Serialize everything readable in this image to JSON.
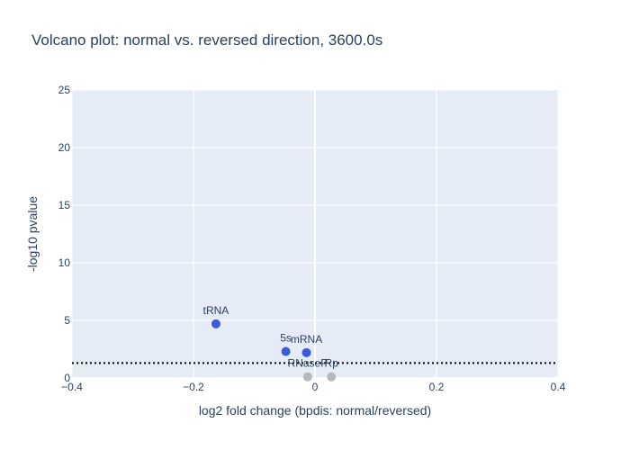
{
  "chart_data": {
    "type": "scatter",
    "title": "Volcano plot: normal vs. reversed direction, 3600.0s",
    "xlabel": "log2 fold change (bpdis: normal/reversed)",
    "ylabel": "-log10 pvalue",
    "xlim": [
      -0.4,
      0.4
    ],
    "ylim": [
      0,
      25
    ],
    "x_ticks": [
      -0.4,
      -0.2,
      0,
      0.2,
      0.4
    ],
    "x_tick_labels": [
      "−0.4",
      "−0.2",
      "0",
      "0.2",
      "0.4"
    ],
    "y_ticks": [
      0,
      5,
      10,
      15,
      20,
      25
    ],
    "y_tick_labels": [
      "0",
      "5",
      "10",
      "15",
      "20",
      "25"
    ],
    "threshold_y": 1.3,
    "grid": true,
    "colors": {
      "background": "#e5ecf6",
      "grid": "#ffffff",
      "significant": "#3b5bdb",
      "nonsignificant": "#b4b8bf",
      "threshold": "#000000",
      "text": "#2a3f5f"
    },
    "points": [
      {
        "label": "tRNA",
        "x": -0.163,
        "y": 4.7,
        "significant": true
      },
      {
        "label": "5s",
        "x": -0.048,
        "y": 2.3,
        "significant": true
      },
      {
        "label": "mRNA",
        "x": -0.014,
        "y": 2.2,
        "significant": true
      },
      {
        "label": "RNaseP",
        "x": -0.012,
        "y": 0.1,
        "significant": false
      },
      {
        "label": "Rp",
        "x": 0.027,
        "y": 0.1,
        "significant": false
      }
    ]
  }
}
